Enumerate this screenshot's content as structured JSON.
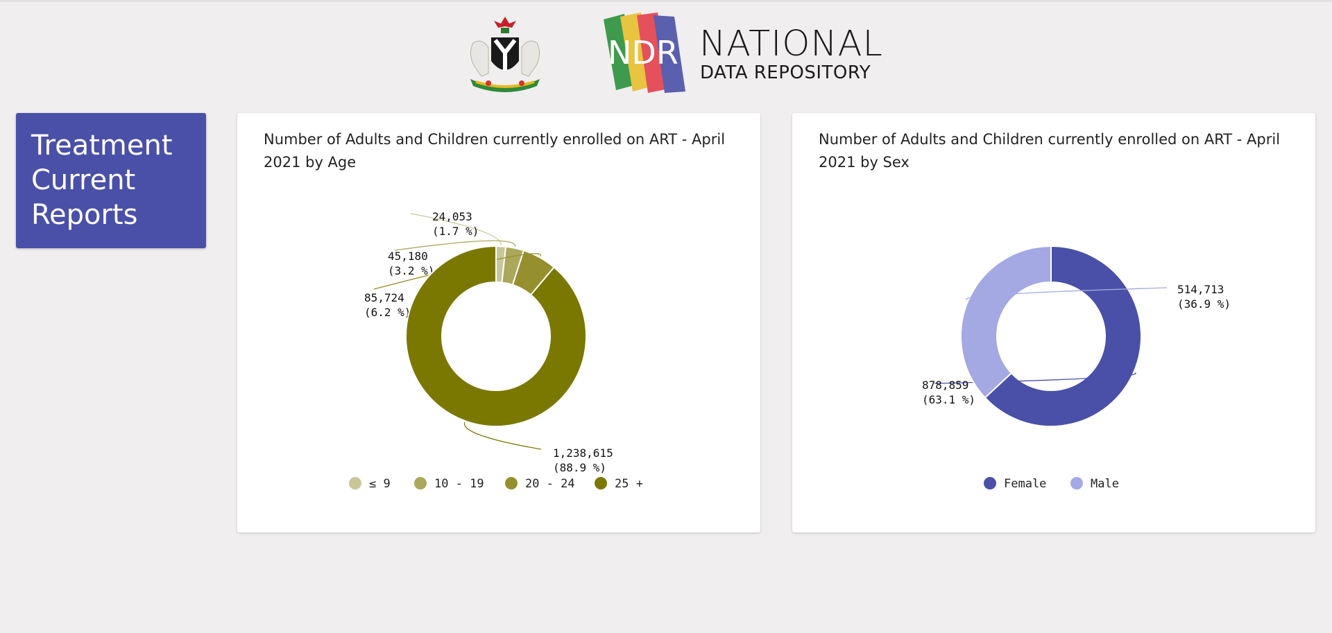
{
  "header": {
    "logo_line1": "NATIONAL",
    "logo_line2": "DATA REPOSITORY",
    "logo_mark": "NDR"
  },
  "report_box": {
    "title": "Treatment Current Reports"
  },
  "charts": {
    "age": {
      "title": "Number of Adults and Children currently enrolled on ART - April 2021 by Age"
    },
    "sex": {
      "title": "Number of Adults and Children currently enrolled on ART - April 2021 by Sex"
    }
  },
  "chart_data": [
    {
      "type": "pie",
      "title": "Number of Adults and Children currently enrolled on ART - April 2021 by Age",
      "donut": true,
      "categories": [
        "≤ 9",
        "10 - 19",
        "20 - 24",
        "25 +"
      ],
      "values": [
        24053,
        45180,
        85724,
        1238615
      ],
      "value_labels": [
        "24,053",
        "45,180",
        "85,724",
        "1,238,615"
      ],
      "percent_labels": [
        "(1.7 %)",
        "(3.2 %)",
        "(6.2 %)",
        "(88.9 %)"
      ],
      "colors": [
        "#c9c79a",
        "#aba85c",
        "#968f2e",
        "#7a7800"
      ],
      "legend": "bottom"
    },
    {
      "type": "pie",
      "title": "Number of Adults and Children currently enrolled on ART - April 2021 by Sex",
      "donut": true,
      "categories": [
        "Female",
        "Male"
      ],
      "values": [
        878859,
        514713
      ],
      "value_labels": [
        "878,859",
        "514,713"
      ],
      "percent_labels": [
        "(63.1 %)",
        "(36.9 %)"
      ],
      "colors": [
        "#4a50a7",
        "#a4a8e3"
      ],
      "legend": "bottom"
    }
  ]
}
